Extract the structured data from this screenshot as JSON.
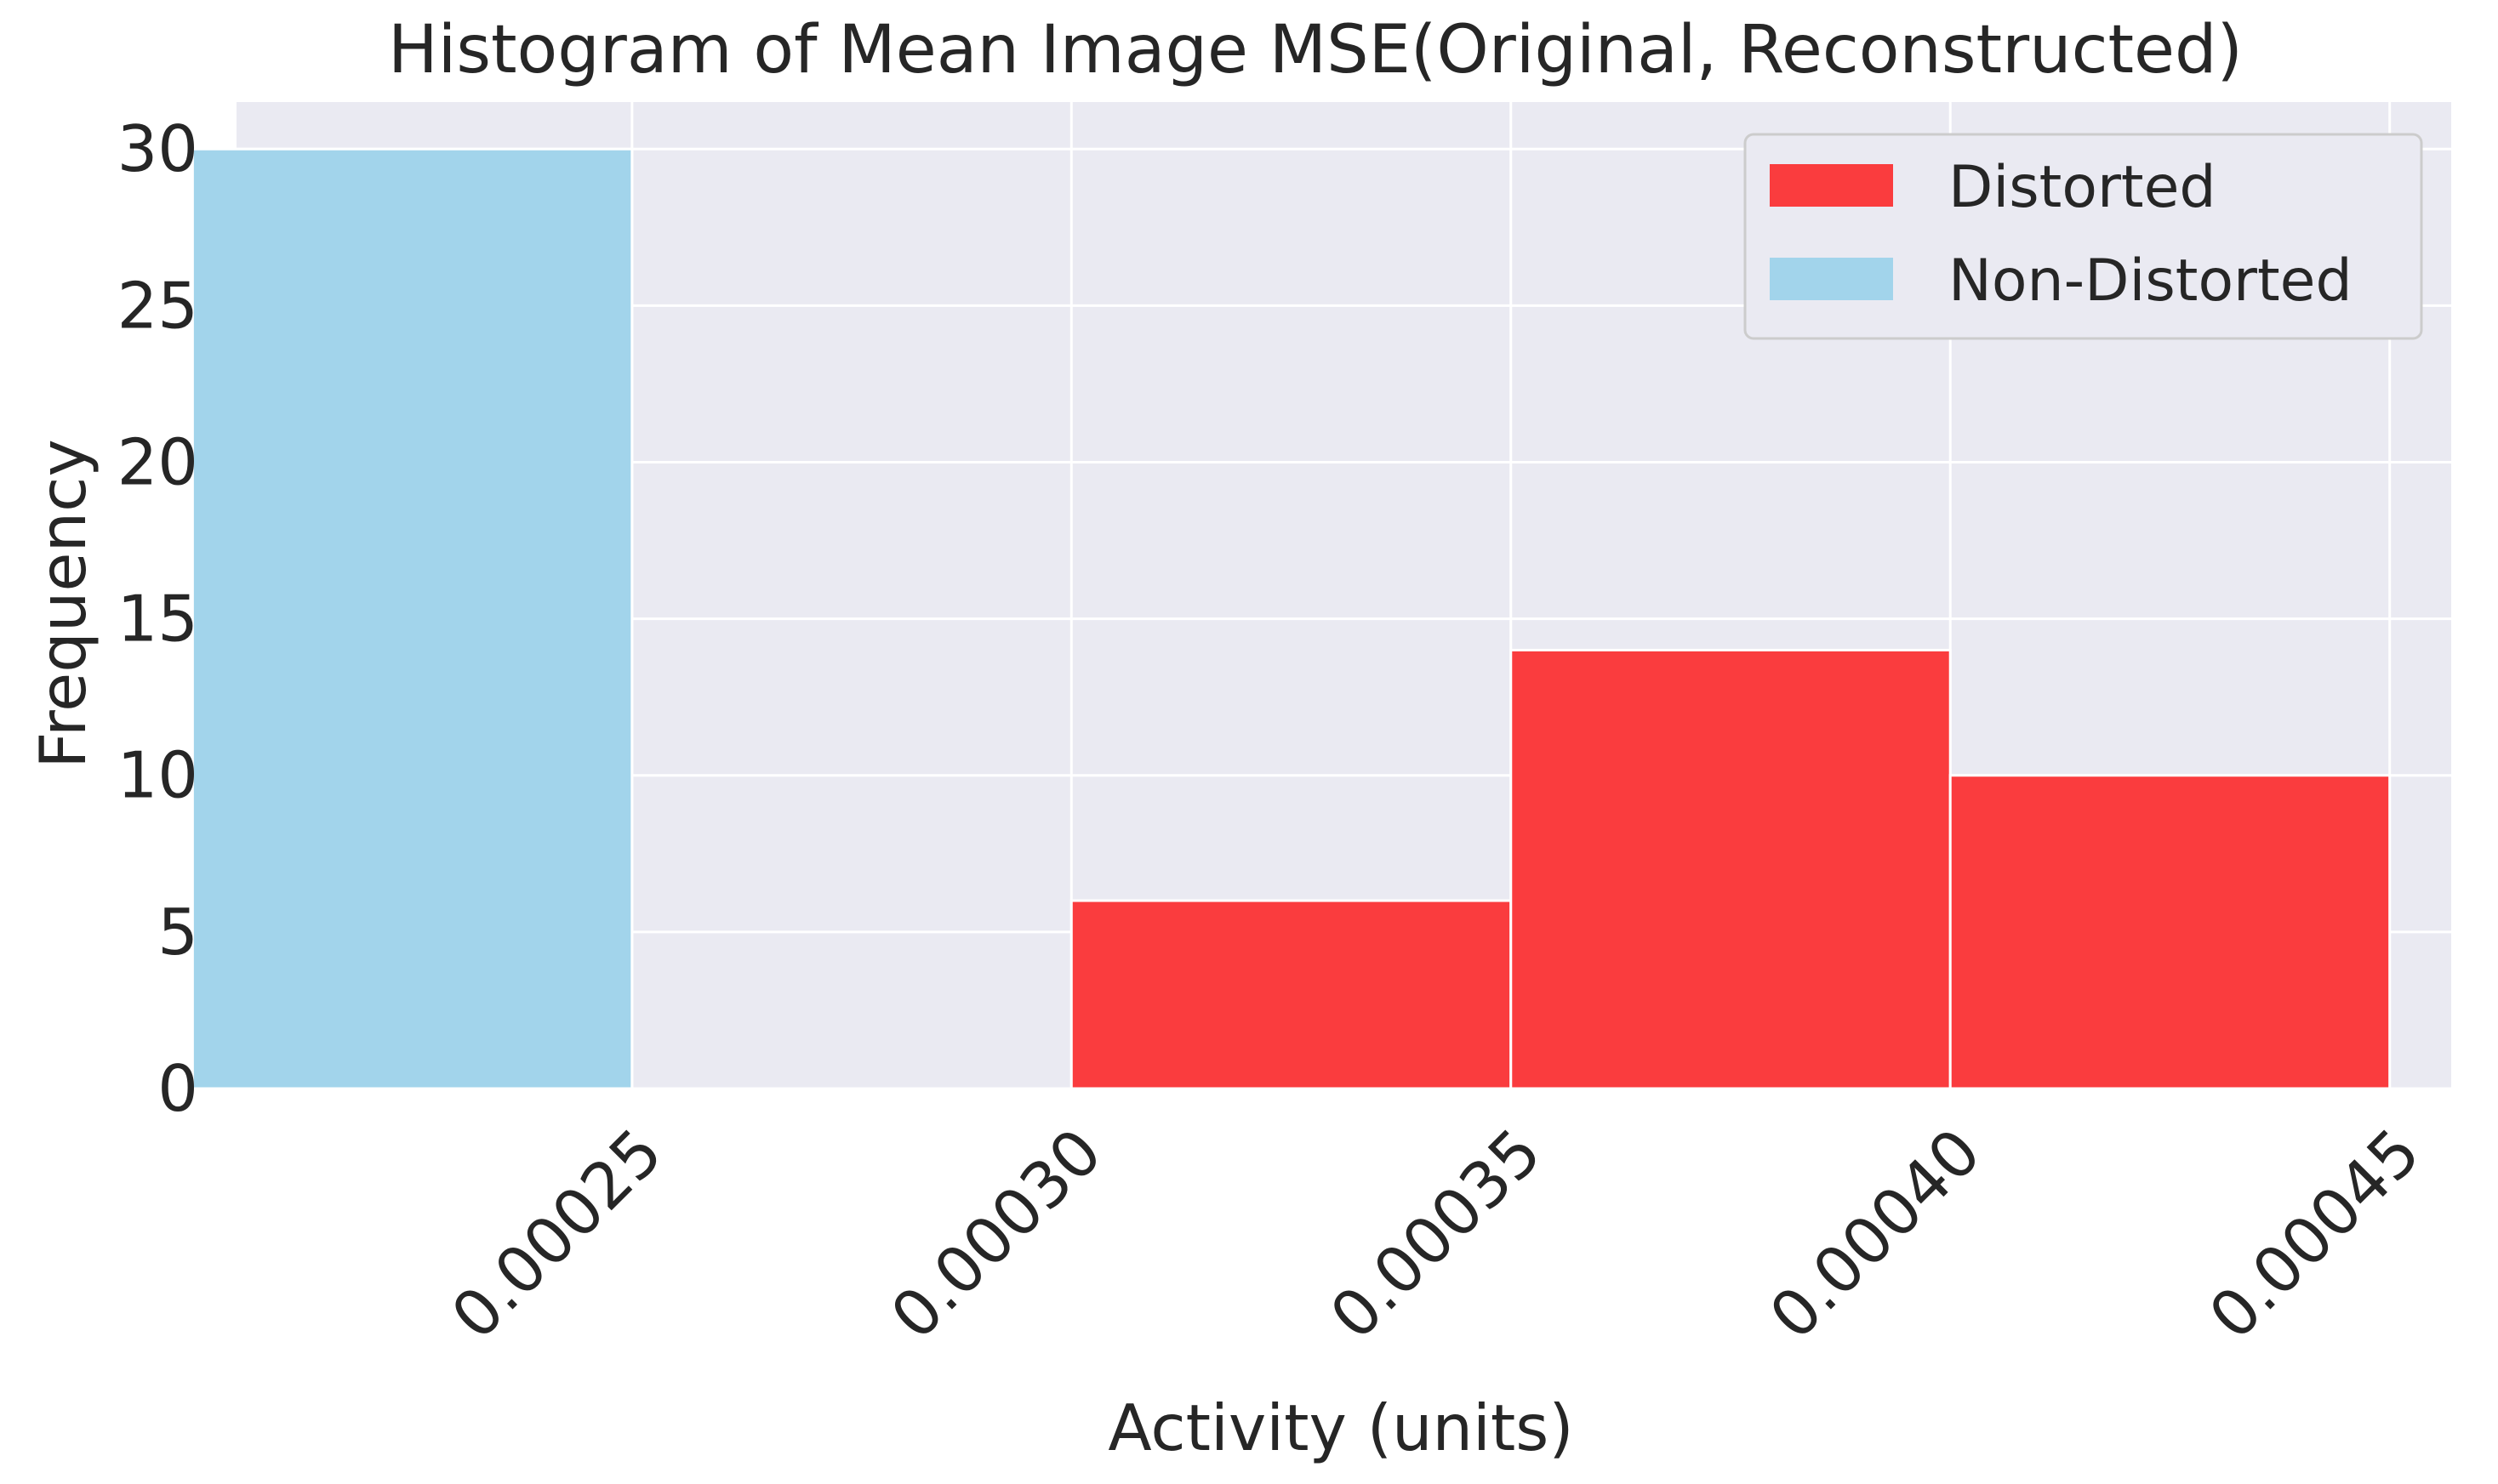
{
  "chart_data": {
    "type": "bar",
    "title": "Histogram of Mean Image MSE(Original, Reconstructed)",
    "xlabel": "Activity (units)",
    "ylabel": "Frequency",
    "xlim": [
      0.000205,
      0.000457
    ],
    "ylim": [
      0,
      31.5
    ],
    "xticks": [
      0.00025,
      0.0003,
      0.00035,
      0.0004,
      0.00045
    ],
    "xtick_labels": [
      "0.00025",
      "0.00030",
      "0.00035",
      "0.00040",
      "0.00045"
    ],
    "yticks": [
      0,
      5,
      10,
      15,
      20,
      25,
      30
    ],
    "ytick_labels": [
      "0",
      "5",
      "10",
      "15",
      "20",
      "25",
      "30"
    ],
    "grid": true,
    "legend_position": "top-right",
    "background": "#eaeaf2",
    "series": [
      {
        "name": "Distorted",
        "color": "#fa3c3e",
        "bins": [
          {
            "start": 0.0003,
            "end": 0.00035,
            "value": 6
          },
          {
            "start": 0.00035,
            "end": 0.0004,
            "value": 14
          },
          {
            "start": 0.0004,
            "end": 0.00045,
            "value": 10
          }
        ]
      },
      {
        "name": "Non-Distorted",
        "color": "#a2d4eb",
        "bins": [
          {
            "start": 0.0002,
            "end": 0.00025,
            "value": 30
          }
        ]
      }
    ]
  }
}
